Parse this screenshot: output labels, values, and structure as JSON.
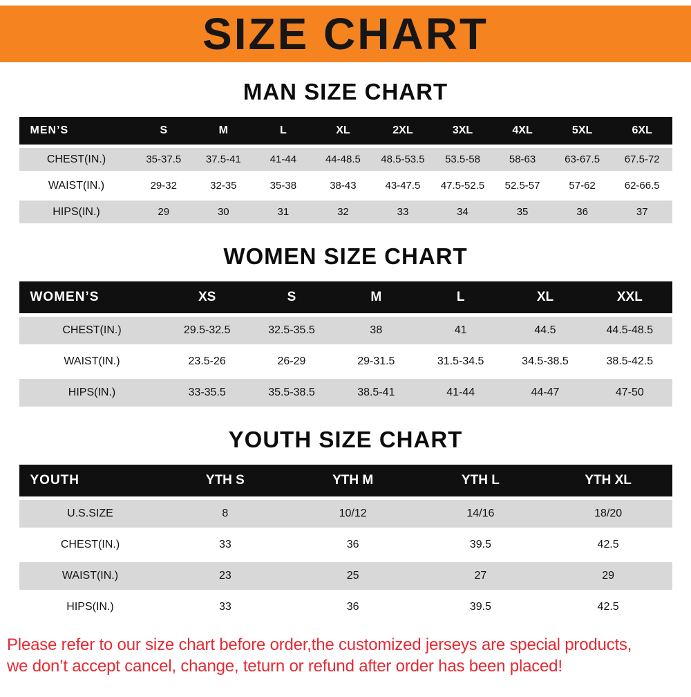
{
  "banner": {
    "title": "SIZE CHART"
  },
  "colors": {
    "banner_bg": "#f5831f",
    "table_header_bg": "#101010",
    "stripe_row_bg": "#d8d8d8",
    "footer_text": "#e42a33"
  },
  "sections": [
    {
      "heading": "MAN SIZE CHART"
    },
    {
      "heading": "WOMEN SIZE CHART"
    },
    {
      "heading": "YOUTH SIZE CHART"
    }
  ],
  "chart_data": [
    {
      "type": "table",
      "title": "MAN SIZE CHART",
      "corner_label": "MEN’S",
      "columns": [
        "S",
        "M",
        "L",
        "XL",
        "2XL",
        "3XL",
        "4XL",
        "5XL",
        "6XL"
      ],
      "rows": [
        {
          "label": "CHEST(IN.)",
          "values": [
            "35-37.5",
            "37.5-41",
            "41-44",
            "44-48.5",
            "48.5-53.5",
            "53.5-58",
            "58-63",
            "63-67.5",
            "67.5-72"
          ]
        },
        {
          "label": "WAIST(IN.)",
          "values": [
            "29-32",
            "32-35",
            "35-38",
            "38-43",
            "43-47.5",
            "47.5-52.5",
            "52.5-57",
            "57-62",
            "62-66.5"
          ]
        },
        {
          "label": "HIPS(IN.)",
          "values": [
            "29",
            "30",
            "31",
            "32",
            "33",
            "34",
            "35",
            "36",
            "37"
          ]
        }
      ]
    },
    {
      "type": "table",
      "title": "WOMEN SIZE CHART",
      "corner_label": "WOMEN’S",
      "columns": [
        "XS",
        "S",
        "M",
        "L",
        "XL",
        "XXL"
      ],
      "rows": [
        {
          "label": "CHEST(IN.)",
          "values": [
            "29.5-32.5",
            "32.5-35.5",
            "38",
            "41",
            "44.5",
            "44.5-48.5"
          ]
        },
        {
          "label": "WAIST(IN.)",
          "values": [
            "23.5-26",
            "26-29",
            "29-31.5",
            "31.5-34.5",
            "34.5-38.5",
            "38.5-42.5"
          ]
        },
        {
          "label": "HIPS(IN.)",
          "values": [
            "33-35.5",
            "35.5-38.5",
            "38.5-41",
            "41-44",
            "44-47",
            "47-50"
          ]
        }
      ]
    },
    {
      "type": "table",
      "title": "YOUTH SIZE CHART",
      "corner_label": "YOUTH",
      "columns": [
        "YTH S",
        "YTH M",
        "YTH L",
        "YTH XL"
      ],
      "rows": [
        {
          "label": "U.S.SIZE",
          "values": [
            "8",
            "10/12",
            "14/16",
            "18/20"
          ]
        },
        {
          "label": "CHEST(IN.)",
          "values": [
            "33",
            "36",
            "39.5",
            "42.5"
          ]
        },
        {
          "label": "WAIST(IN.)",
          "values": [
            "23",
            "25",
            "27",
            "29"
          ]
        },
        {
          "label": "HIPS(IN.)",
          "values": [
            "33",
            "36",
            "39.5",
            "42.5"
          ]
        }
      ]
    }
  ],
  "footer": {
    "lines": [
      "Please refer to our size chart before order,the customized jerseys are special products,",
      "we don’t accept cancel, change, teturn or refund after order has been placed!"
    ]
  }
}
